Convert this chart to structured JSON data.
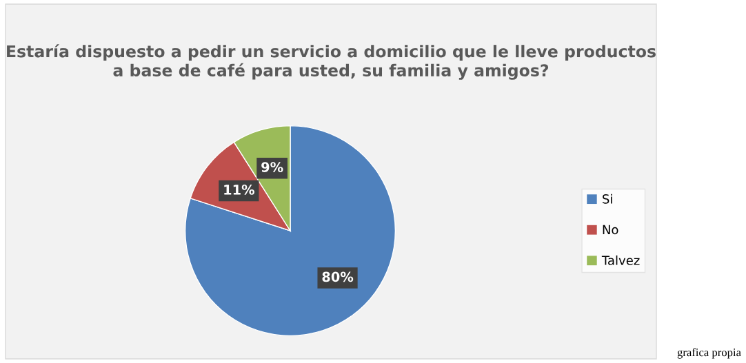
{
  "chart_data": {
    "type": "pie",
    "title": "Estaría dispuesto a pedir un servicio a domicilio que le lleve productos a base de café para usted, su familia y amigos?",
    "categories": [
      "Si",
      "No",
      "Talvez"
    ],
    "values": [
      80,
      11,
      9
    ],
    "colors": [
      "#4f81bd",
      "#c0504d",
      "#9bbb59"
    ],
    "value_labels": [
      "80%",
      "11%",
      "9%"
    ],
    "legend": "right",
    "annotations": [
      "grafica propia"
    ]
  }
}
